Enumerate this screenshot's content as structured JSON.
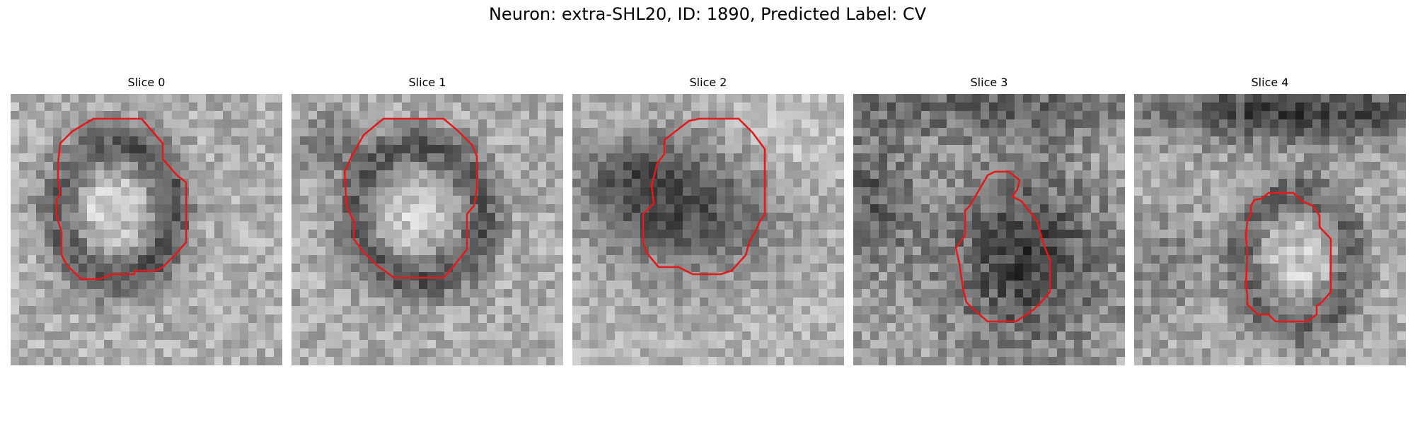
{
  "figure": {
    "title": "Neuron: extra-SHL20, ID: 1890, Predicted Label: CV"
  },
  "colors": {
    "contour": "#e31a1c"
  },
  "panels": [
    {
      "title": "Slice 0"
    },
    {
      "title": "Slice 1"
    },
    {
      "title": "Slice 2"
    },
    {
      "title": "Slice 3"
    },
    {
      "title": "Slice 4"
    }
  ]
}
